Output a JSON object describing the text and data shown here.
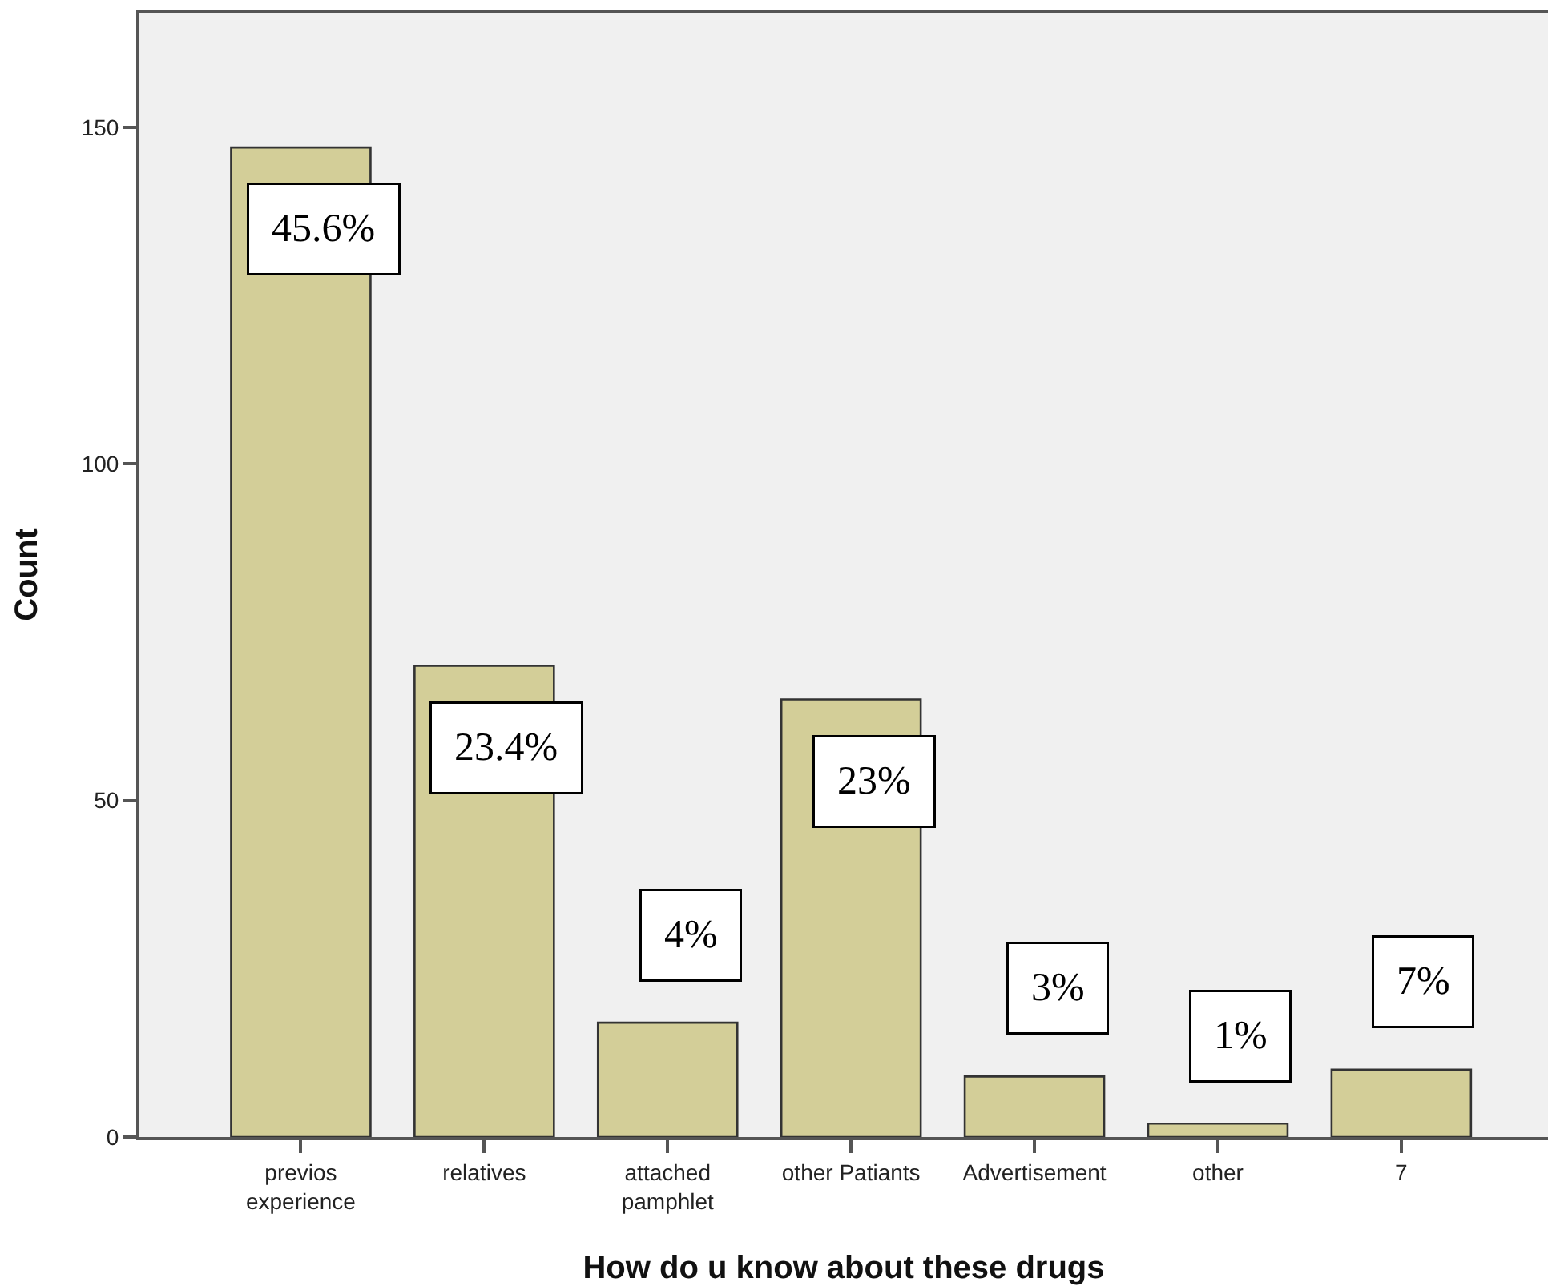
{
  "chart_data": {
    "type": "bar",
    "xlabel": "How do u know about these drugs",
    "ylabel": "Count",
    "categories": [
      "previos experience",
      "relatives",
      "attached pamphlet",
      "other Patiants",
      "Advertisement",
      "other",
      "7"
    ],
    "values": [
      147,
      70,
      17,
      65,
      9,
      2,
      10
    ],
    "annotations": [
      {
        "text": "45.6%",
        "x": "previos experience",
        "y": 147
      },
      {
        "text": "23.4%",
        "x": "relatives",
        "y": 70
      },
      {
        "text": "4%",
        "x": "attached pamphlet",
        "y": 17
      },
      {
        "text": "23%",
        "x": "other Patiants",
        "y": 65
      },
      {
        "text": "3%",
        "x": "Advertisement",
        "y": 9
      },
      {
        "text": "1%",
        "x": "other",
        "y": 2
      },
      {
        "text": "7%",
        "x": "7",
        "y": 10
      }
    ],
    "color": "#d3ce98",
    "ylim": [
      0,
      167
    ],
    "yticks": [
      0,
      50,
      100,
      150
    ],
    "grid": false
  }
}
